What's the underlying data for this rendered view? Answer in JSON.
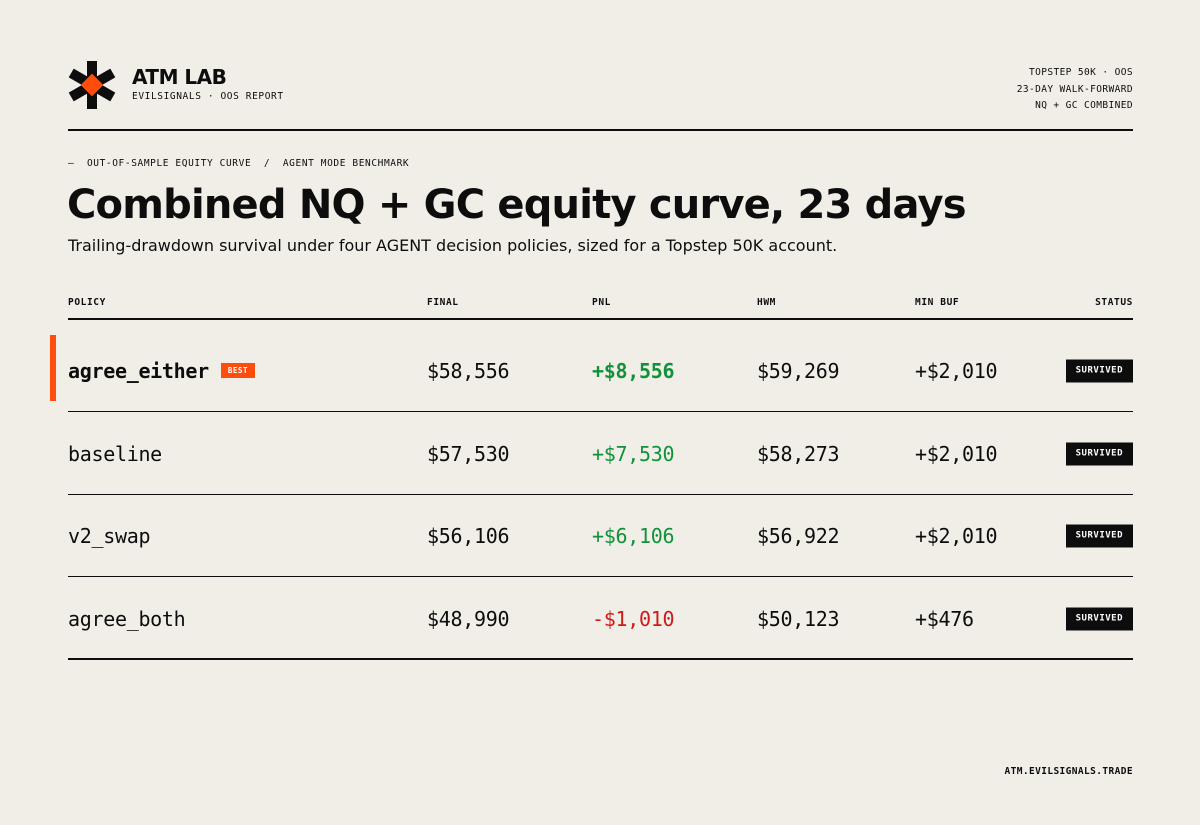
{
  "brand": {
    "title": "ATM LAB",
    "subtitle": "EVILSIGNALS · OOS REPORT",
    "logo_icon": "asterisk-diamond-logo",
    "accent_color": "#ff4d0d"
  },
  "meta": [
    "TOPSTEP 50K · OOS",
    "23-DAY WALK-FORWARD",
    "NQ + GC COMBINED"
  ],
  "eyebrow": "—  OUT-OF-SAMPLE EQUITY CURVE  /  AGENT MODE BENCHMARK",
  "title": "Combined NQ + GC equity curve, 23 days",
  "subtitle": "Trailing-drawdown survival under four AGENT decision policies, sized for a Topstep 50K account.",
  "table": {
    "headers": {
      "policy": "POLICY",
      "final": "FINAL",
      "pnl": "PNL",
      "hwm": "HWM",
      "min_buf": "MIN BUF",
      "status": "STATUS"
    },
    "rows": [
      {
        "policy": "agree_either",
        "badge": "BEST",
        "final": "$58,556",
        "pnl": "+$8,556",
        "hwm": "$59,269",
        "min_buf": "+$2,010",
        "status": "SURVIVED"
      },
      {
        "policy": "baseline",
        "final": "$57,530",
        "pnl": "+$7,530",
        "hwm": "$58,273",
        "min_buf": "+$2,010",
        "status": "SURVIVED"
      },
      {
        "policy": "v2_swap",
        "final": "$56,106",
        "pnl": "+$6,106",
        "hwm": "$56,922",
        "min_buf": "+$2,010",
        "status": "SURVIVED"
      },
      {
        "policy": "agree_both",
        "final": "$48,990",
        "pnl": "-$1,010",
        "hwm": "$50,123",
        "min_buf": "+$476",
        "status": "SURVIVED"
      }
    ],
    "positive_color": "#11923a",
    "negative_color": "#cf1a1a"
  },
  "footer": "ATM.EVILSIGNALS.TRADE"
}
